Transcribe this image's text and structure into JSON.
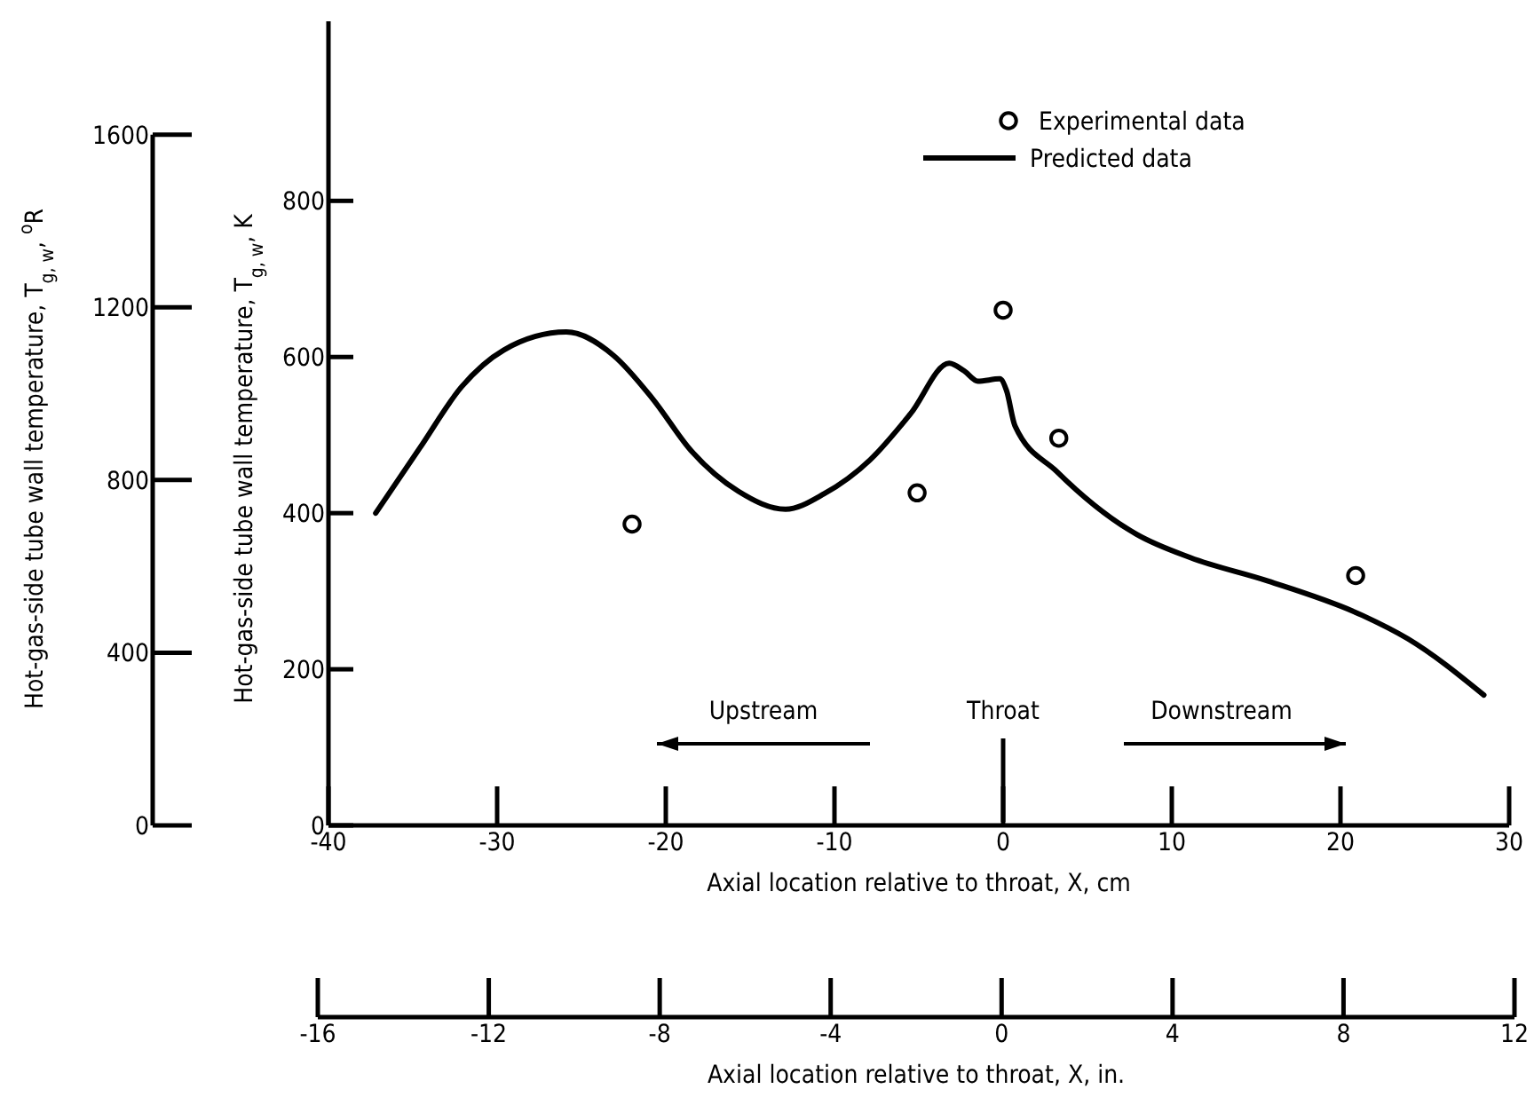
{
  "chart_data": {
    "type": "line",
    "xlabel": "Axial location relative to throat, X, cm",
    "x2label": "Axial location relative to throat, X, in.",
    "ylabel": "Hot-gas-side tube wall temperature, T$_{g, w}$, K",
    "y2label": "Hot-gas-side tube wall temperature, T$_{g, w}$, $^{o}$R",
    "xlim": [
      -40,
      30
    ],
    "xticks": [
      -40,
      -30,
      -20,
      -10,
      0,
      10,
      20,
      30
    ],
    "x2lim": [
      -16,
      12
    ],
    "x2ticks": [
      -16,
      -12,
      -8,
      -4,
      0,
      4,
      8,
      12
    ],
    "ylim": [
      0,
      1030
    ],
    "yticks": [
      0,
      200,
      400,
      600,
      800
    ],
    "y2lim": [
      0,
      1600
    ],
    "y2ticks": [
      0,
      400,
      800,
      1200,
      1600
    ],
    "legend": "top right",
    "grid": false,
    "annotations": [
      "Upstream",
      "Throat",
      "Downstream"
    ],
    "series": [
      {
        "name": "Experimental data",
        "type": "scatter",
        "marker": "circle",
        "color": "#000000",
        "x": [
          -22.0,
          -5.1,
          0,
          3.3,
          20.9
        ],
        "values": [
          386,
          426,
          660,
          496,
          320
        ]
      },
      {
        "name": "Predicted data",
        "type": "line",
        "marker": "none",
        "line_style": "solid",
        "color": "#000000",
        "x": [
          -37.2,
          -34.6,
          -32.1,
          -29.6,
          -25.9,
          -23.1,
          -20.8,
          -18.5,
          -15.7,
          -12.9,
          -10.6,
          -7.9,
          -5.5,
          -3.2,
          -2.3,
          -1.5,
          -0.2,
          0.2,
          0.7,
          3.2,
          7.9,
          11.1,
          15.7,
          21.3,
          24.0,
          28.5
        ],
        "values": [
          400,
          483,
          562,
          609,
          632,
          602,
          547,
          480,
          428,
          405,
          425,
          468,
          527,
          592,
          582,
          569,
          572,
          557,
          512,
          453,
          373,
          343,
          313,
          269,
          239,
          167
        ]
      }
    ]
  }
}
